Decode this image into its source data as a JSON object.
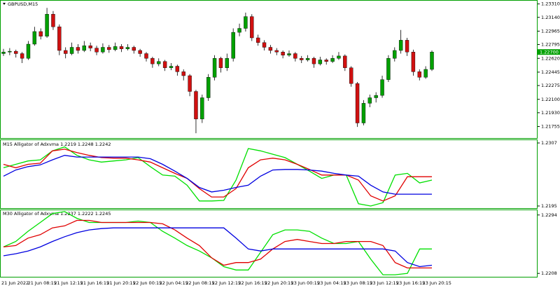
{
  "chart_data": [
    {
      "type": "candlestick",
      "title": "GBPUSD,M15",
      "up_color": "#00a000",
      "down_color": "#d01010",
      "ylim": [
        1.216,
        1.2336
      ],
      "yticks": [
        {
          "value": 1.2331,
          "label": "1.23310"
        },
        {
          "value": 1.2314,
          "label": "1.23140"
        },
        1.22965,
        1.22795,
        {
          "value": 1.2262,
          "label": "1.22620"
        },
        1.22445,
        1.22275,
        {
          "value": 1.221,
          "label": "1.22100"
        },
        {
          "value": 1.2193,
          "label": "1.21930"
        },
        1.21755
      ],
      "current_price": {
        "value": 1.227,
        "label": "1.22700"
      },
      "time_labels": [
        "21 Jun 2022",
        "21 Jun 08:15",
        "21 Jun 12:15",
        "21 Jun 16:15",
        "21 Jun 20:15",
        "22 Jun 00:15",
        "22 Jun 04:15",
        "22 Jun 08:15",
        "22 Jun 12:15",
        "22 Jun 16:15",
        "22 Jun 20:15",
        "23 Jun 00:15",
        "23 Jun 04:15",
        "23 Jun 08:15",
        "23 Jun 12:15",
        "23 Jun 16:15",
        "23 Jun 20:15"
      ],
      "candles": [
        [
          1.2268,
          1.2274,
          1.2265,
          1.227
        ],
        [
          1.227,
          1.2275,
          1.2266,
          1.2271
        ],
        [
          1.2271,
          1.2273,
          1.2263,
          1.2268
        ],
        [
          1.2268,
          1.227,
          1.2256,
          1.2262
        ],
        [
          1.2262,
          1.2284,
          1.226,
          1.228
        ],
        [
          1.228,
          1.2302,
          1.2278,
          1.2296
        ],
        [
          1.2296,
          1.23,
          1.2286,
          1.229
        ],
        [
          1.229,
          1.2326,
          1.2288,
          1.2318
        ],
        [
          1.2318,
          1.2322,
          1.2298,
          1.2302
        ],
        [
          1.2302,
          1.2305,
          1.2266,
          1.2272
        ],
        [
          1.2272,
          1.2276,
          1.2262,
          1.2268
        ],
        [
          1.2268,
          1.2282,
          1.2266,
          1.2276
        ],
        [
          1.2276,
          1.228,
          1.2268,
          1.2272
        ],
        [
          1.2272,
          1.2284,
          1.227,
          1.2278
        ],
        [
          1.2278,
          1.2282,
          1.2271,
          1.2275
        ],
        [
          1.2275,
          1.2278,
          1.2266,
          1.227
        ],
        [
          1.227,
          1.2281,
          1.2268,
          1.2276
        ],
        [
          1.2276,
          1.2279,
          1.2269,
          1.2273
        ],
        [
          1.2273,
          1.2282,
          1.2271,
          1.2277
        ],
        [
          1.2277,
          1.228,
          1.227,
          1.2274
        ],
        [
          1.2274,
          1.228,
          1.2272,
          1.2276
        ],
        [
          1.2276,
          1.2278,
          1.2268,
          1.2272
        ],
        [
          1.2272,
          1.2274,
          1.2264,
          1.2268
        ],
        [
          1.2268,
          1.227,
          1.2258,
          1.2262
        ],
        [
          1.2262,
          1.2264,
          1.225,
          1.2255
        ],
        [
          1.2255,
          1.2262,
          1.2252,
          1.2258
        ],
        [
          1.2258,
          1.226,
          1.2246,
          1.225
        ],
        [
          1.225,
          1.2256,
          1.2247,
          1.2252
        ],
        [
          1.2252,
          1.2254,
          1.224,
          1.2245
        ],
        [
          1.2245,
          1.2248,
          1.2234,
          1.224
        ],
        [
          1.224,
          1.2242,
          1.2214,
          1.222
        ],
        [
          1.222,
          1.2222,
          1.2167,
          1.2185
        ],
        [
          1.2185,
          1.2216,
          1.218,
          1.2212
        ],
        [
          1.2212,
          1.2242,
          1.2208,
          1.2238
        ],
        [
          1.2238,
          1.2266,
          1.2234,
          1.2262
        ],
        [
          1.2262,
          1.2264,
          1.2244,
          1.225
        ],
        [
          1.225,
          1.2268,
          1.2246,
          1.2262
        ],
        [
          1.2262,
          1.23,
          1.2258,
          1.2295
        ],
        [
          1.2295,
          1.2306,
          1.229,
          1.23
        ],
        [
          1.23,
          1.232,
          1.2296,
          1.2315
        ],
        [
          1.2315,
          1.2318,
          1.2284,
          1.2288
        ],
        [
          1.2288,
          1.2292,
          1.2278,
          1.2282
        ],
        [
          1.2282,
          1.2285,
          1.2272,
          1.2276
        ],
        [
          1.2276,
          1.2279,
          1.2268,
          1.2272
        ],
        [
          1.2272,
          1.2275,
          1.2266,
          1.227
        ],
        [
          1.227,
          1.2272,
          1.2262,
          1.2266
        ],
        [
          1.2266,
          1.2272,
          1.2264,
          1.2268
        ],
        [
          1.2268,
          1.227,
          1.2258,
          1.2262
        ],
        [
          1.2262,
          1.2265,
          1.2256,
          1.226
        ],
        [
          1.226,
          1.2266,
          1.2258,
          1.2262
        ],
        [
          1.2262,
          1.2264,
          1.225,
          1.2255
        ],
        [
          1.2255,
          1.2264,
          1.2253,
          1.226
        ],
        [
          1.226,
          1.2262,
          1.2254,
          1.2258
        ],
        [
          1.2258,
          1.2266,
          1.2256,
          1.2262
        ],
        [
          1.2262,
          1.227,
          1.226,
          1.2265
        ],
        [
          1.2265,
          1.2267,
          1.2246,
          1.225
        ],
        [
          1.225,
          1.2252,
          1.2226,
          1.223
        ],
        [
          1.223,
          1.2232,
          1.2175,
          1.218
        ],
        [
          1.218,
          1.2209,
          1.2177,
          1.2205
        ],
        [
          1.2205,
          1.2216,
          1.22,
          1.2212
        ],
        [
          1.2212,
          1.2219,
          1.2206,
          1.2215
        ],
        [
          1.2215,
          1.224,
          1.2212,
          1.2235
        ],
        [
          1.2235,
          1.2266,
          1.2232,
          1.2262
        ],
        [
          1.2262,
          1.2276,
          1.2258,
          1.2272
        ],
        [
          1.2272,
          1.2298,
          1.2268,
          1.2285
        ],
        [
          1.2285,
          1.2288,
          1.2265,
          1.227
        ],
        [
          1.227,
          1.2273,
          1.224,
          1.2245
        ],
        [
          1.2245,
          1.2248,
          1.2234,
          1.2238
        ],
        [
          1.2238,
          1.2252,
          1.2236,
          1.2248
        ],
        [
          1.2248,
          1.2272,
          1.2246,
          1.227
        ]
      ]
    },
    {
      "type": "line",
      "label": "M15",
      "title": "Alligator of Adxvma 1.2219 1.2248 1.2242",
      "ylim": [
        1.219,
        1.2312
      ],
      "yticks": [
        1.2307,
        1.2195
      ],
      "series": [
        {
          "color": "#00e000",
          "values": [
            1.2263,
            1.2269,
            1.2275,
            1.2277,
            1.2293,
            1.23,
            1.2285,
            1.2277,
            1.2273,
            1.2275,
            1.2277,
            1.2281,
            1.2265,
            1.225,
            1.2248,
            1.2232,
            1.2204,
            1.2204,
            1.2205,
            1.2241,
            1.2297,
            1.2293,
            1.2287,
            1.2281,
            1.2269,
            1.2257,
            1.2244,
            1.225,
            1.225,
            1.2199,
            1.2195,
            1.2201,
            1.225,
            1.2253,
            1.2236,
            1.2241
          ]
        },
        {
          "color": "#e00000",
          "values": [
            1.2269,
            1.2263,
            1.2269,
            1.2271,
            1.2293,
            1.2296,
            1.229,
            1.2285,
            1.2281,
            1.228,
            1.228,
            1.2277,
            1.2273,
            1.2263,
            1.2253,
            1.2244,
            1.2226,
            1.2211,
            1.2211,
            1.2226,
            1.2263,
            1.2277,
            1.228,
            1.2277,
            1.2269,
            1.226,
            1.225,
            1.225,
            1.225,
            1.2241,
            1.2213,
            1.2204,
            1.2213,
            1.2247,
            1.2247,
            1.2247
          ]
        },
        {
          "color": "#0000e0",
          "values": [
            1.2248,
            1.2259,
            1.2265,
            1.2268,
            1.2277,
            1.2285,
            1.2282,
            1.2282,
            1.2282,
            1.2282,
            1.2282,
            1.2282,
            1.2279,
            1.2269,
            1.2257,
            1.2244,
            1.2228,
            1.222,
            1.2223,
            1.2228,
            1.2232,
            1.2248,
            1.2259,
            1.226,
            1.226,
            1.2259,
            1.2257,
            1.2253,
            1.225,
            1.2248,
            1.2232,
            1.222,
            1.2216,
            1.2216,
            1.2216,
            1.2216
          ]
        }
      ]
    },
    {
      "type": "line",
      "label": "M30",
      "title": "Alligator of Adxvma 1.2237 1.2222 1.2245",
      "ylim": [
        1.2202,
        1.2301
      ],
      "yticks": [
        1.2294,
        1.2208
      ],
      "series": [
        {
          "color": "#00e000",
          "values": [
            1.2247,
            1.2255,
            1.227,
            1.2283,
            1.2296,
            1.2299,
            1.2289,
            1.2283,
            1.2283,
            1.2283,
            1.2283,
            1.2285,
            1.2283,
            1.227,
            1.226,
            1.2249,
            1.2241,
            1.2231,
            1.2218,
            1.2213,
            1.2213,
            1.2239,
            1.2265,
            1.2272,
            1.2272,
            1.227,
            1.226,
            1.2252,
            1.2252,
            1.2255,
            1.2229,
            1.2206,
            1.2206,
            1.2208,
            1.2244,
            1.2244
          ]
        },
        {
          "color": "#e00000",
          "values": [
            1.2247,
            1.2249,
            1.226,
            1.2265,
            1.2275,
            1.2278,
            1.2286,
            1.2286,
            1.2283,
            1.2283,
            1.2283,
            1.2283,
            1.2283,
            1.2281,
            1.2272,
            1.226,
            1.2249,
            1.2231,
            1.222,
            1.2224,
            1.2224,
            1.2229,
            1.2244,
            1.2255,
            1.2258,
            1.2255,
            1.2252,
            1.2252,
            1.2255,
            1.2255,
            1.2255,
            1.2249,
            1.2224,
            1.2216,
            1.2216,
            1.2216
          ]
        },
        {
          "color": "#0000e0",
          "values": [
            1.2234,
            1.2237,
            1.2241,
            1.2247,
            1.2255,
            1.2262,
            1.2268,
            1.2272,
            1.2274,
            1.2275,
            1.2275,
            1.2275,
            1.2275,
            1.2275,
            1.2275,
            1.2275,
            1.2275,
            1.2275,
            1.2275,
            1.226,
            1.2244,
            1.2241,
            1.2244,
            1.2244,
            1.2244,
            1.2244,
            1.2244,
            1.2244,
            1.2244,
            1.2244,
            1.2244,
            1.2244,
            1.2241,
            1.2224,
            1.2218,
            1.222
          ]
        }
      ]
    }
  ]
}
